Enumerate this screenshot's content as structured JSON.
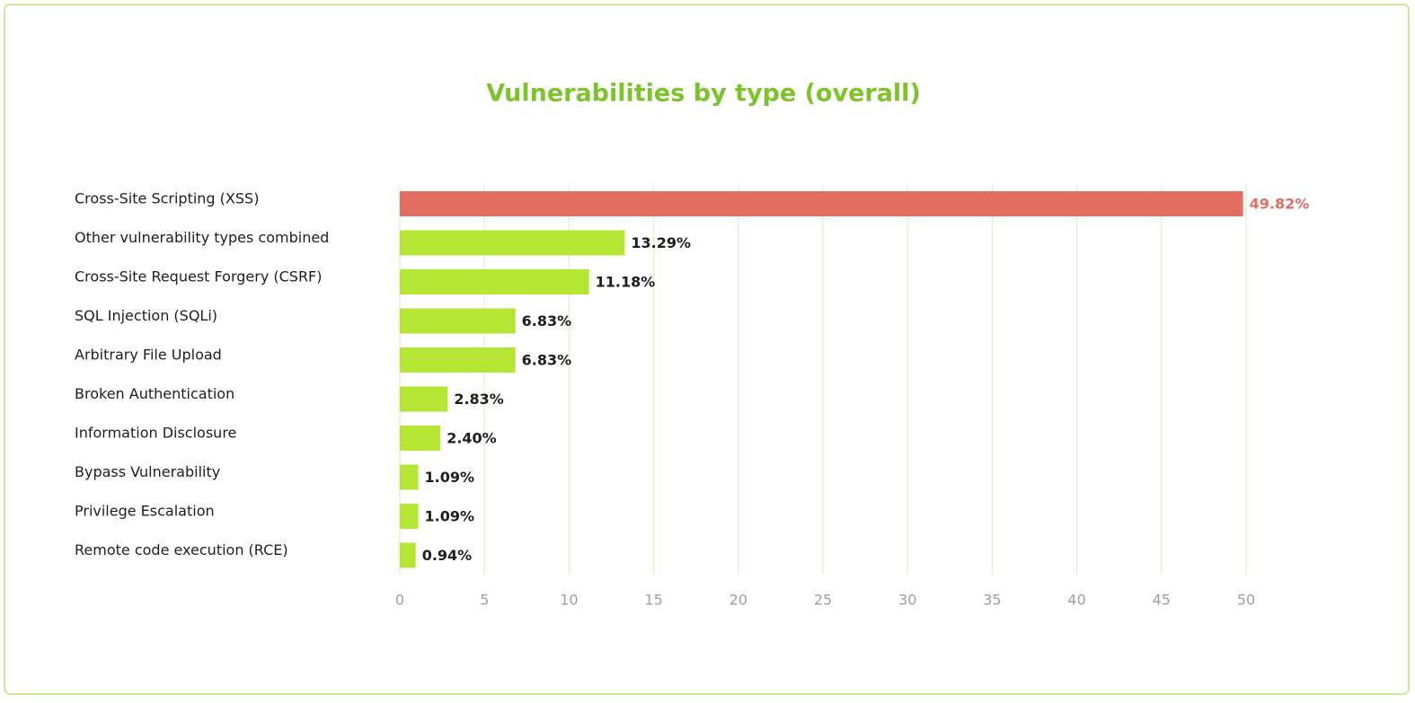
{
  "chart_data": {
    "type": "hbar",
    "title": "Vulnerabilities by type (overall)",
    "categories": [
      "Cross-Site Scripting (XSS)",
      "Other vulnerability types combined",
      "Cross-Site Request Forgery (CSRF)",
      "SQL Injection (SQLi)",
      "Arbitrary File Upload",
      "Broken Authentication",
      "Information Disclosure",
      "Bypass Vulnerability",
      "Privilege Escalation",
      "Remote code execution (RCE)"
    ],
    "values": [
      49.82,
      13.29,
      11.18,
      6.83,
      6.83,
      2.83,
      2.4,
      1.09,
      1.09,
      0.94
    ],
    "value_labels": [
      "49.82%",
      "13.29%",
      "11.18%",
      "6.83%",
      "6.83%",
      "2.83%",
      "2.40%",
      "1.09%",
      "1.09%",
      "0.94%"
    ],
    "colors": [
      "#e36d60",
      "#b5e634",
      "#b5e634",
      "#b5e634",
      "#b5e634",
      "#b5e634",
      "#b5e634",
      "#b5e634",
      "#b5e634",
      "#b5e634"
    ],
    "value_label_colors": [
      "#e36d60",
      "#1e1e1e",
      "#1e1e1e",
      "#1e1e1e",
      "#1e1e1e",
      "#1e1e1e",
      "#1e1e1e",
      "#1e1e1e",
      "#1e1e1e",
      "#1e1e1e"
    ],
    "xlim": [
      0,
      50
    ],
    "xticks": [
      0,
      5,
      10,
      15,
      20,
      25,
      30,
      35,
      40,
      45,
      50
    ],
    "grid": true
  }
}
